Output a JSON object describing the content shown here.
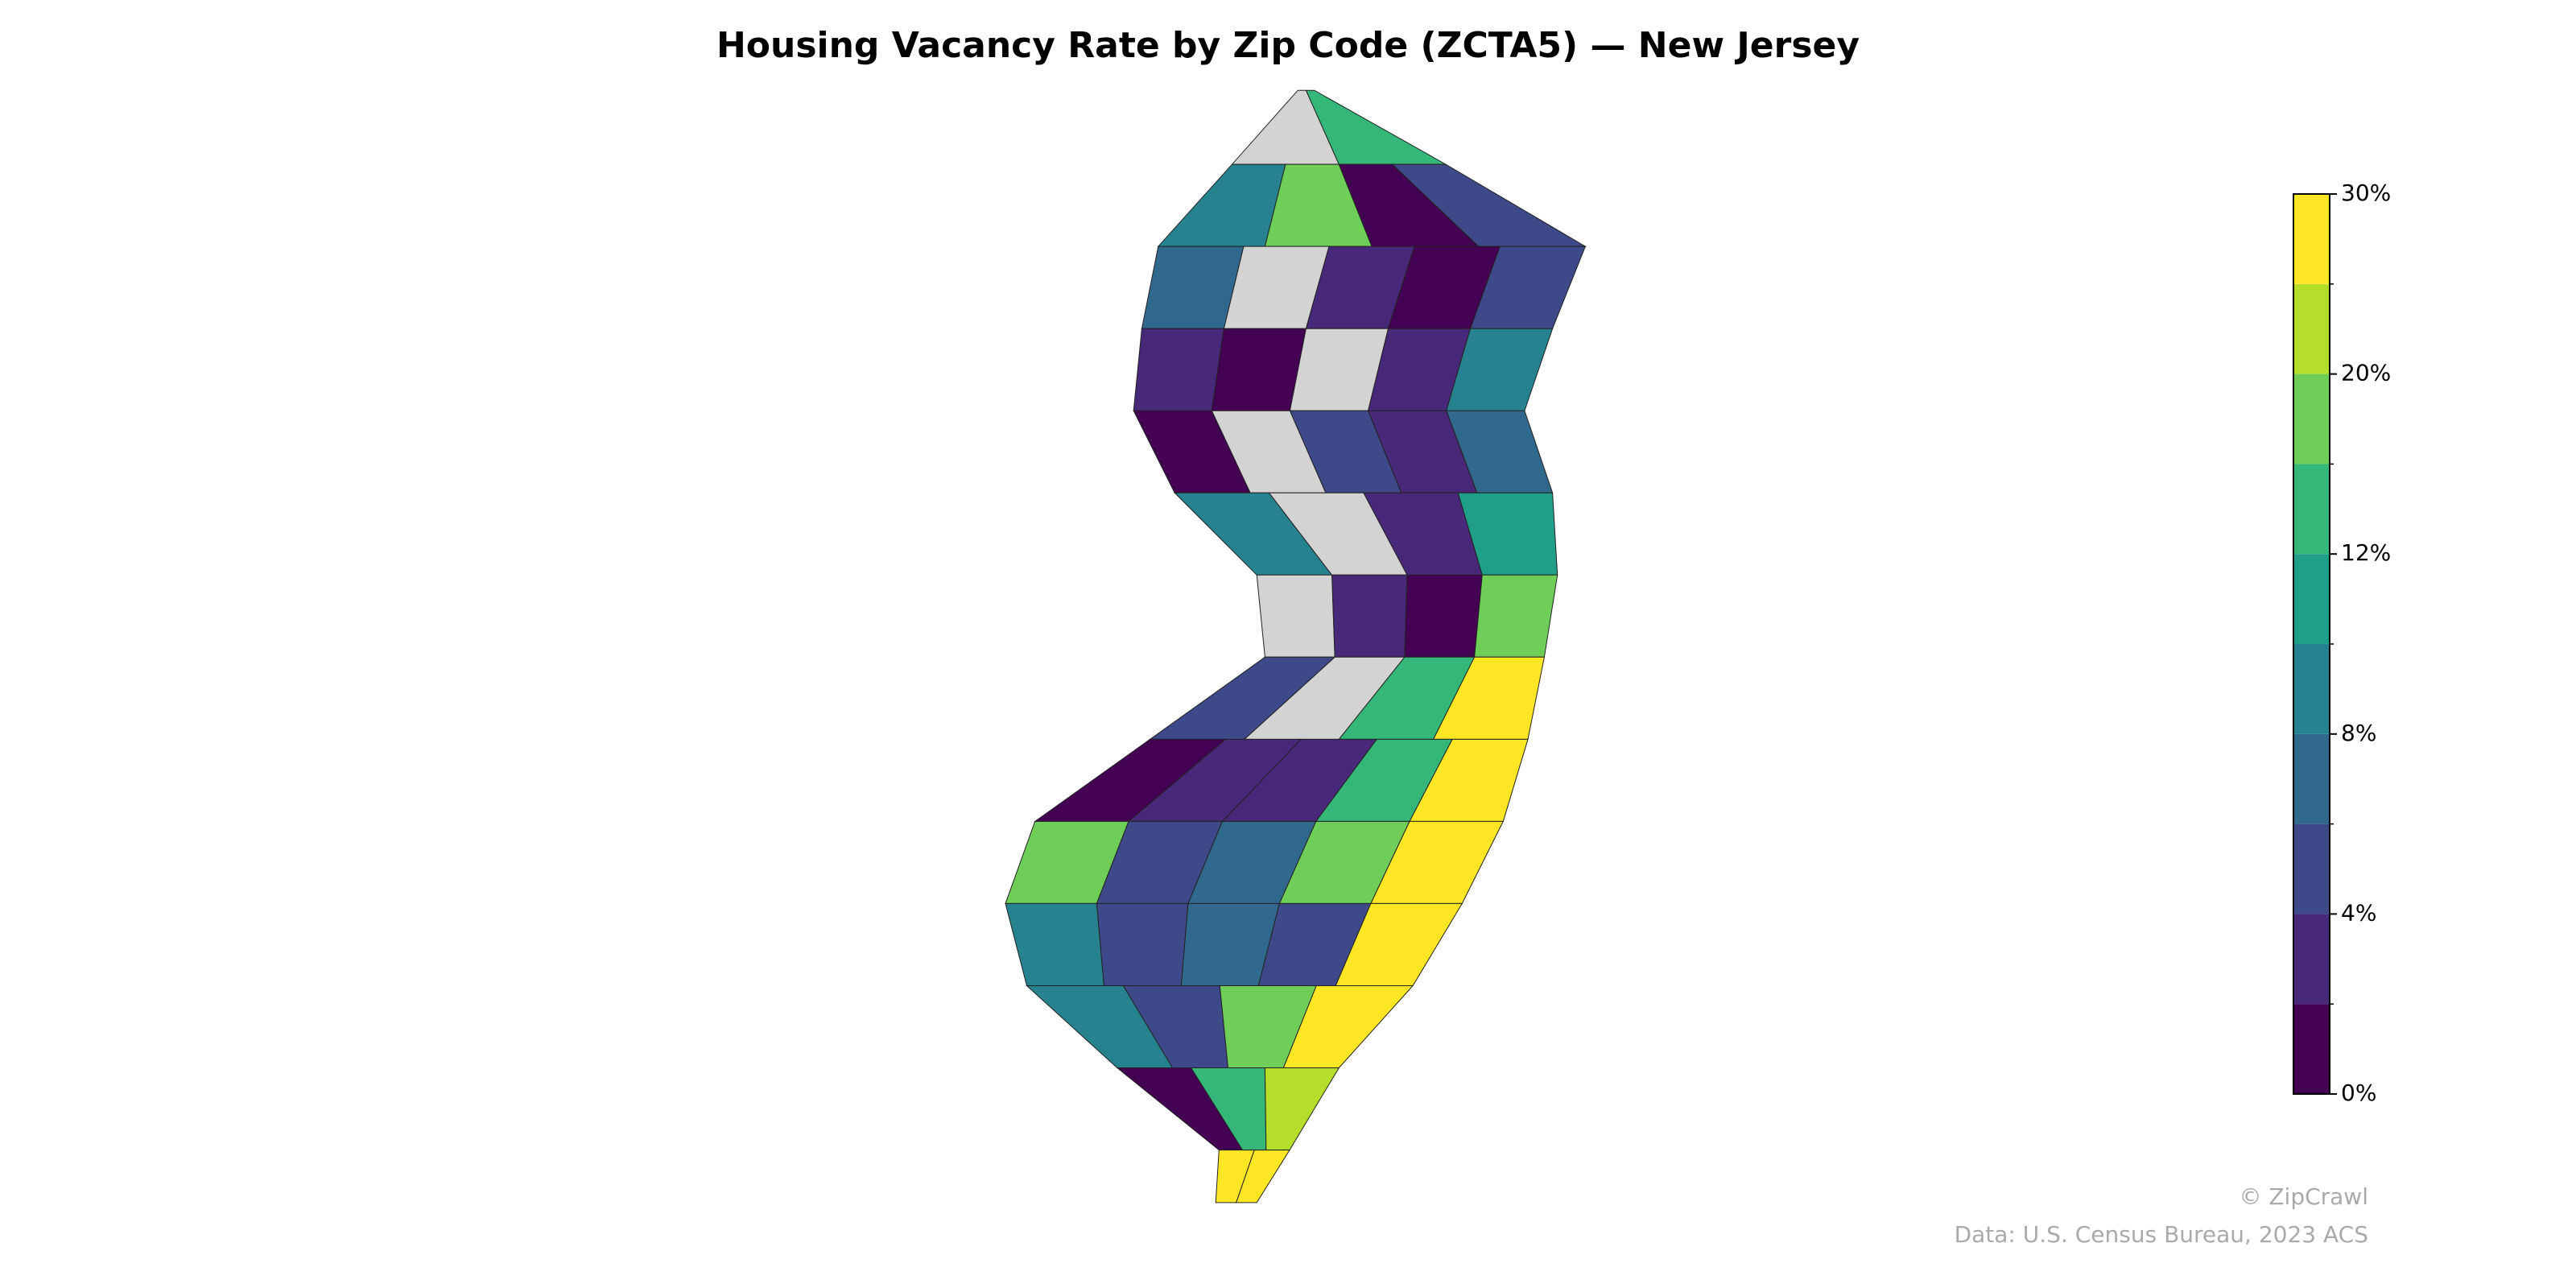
{
  "chart_data": {
    "type": "choropleth",
    "title": "Housing Vacancy Rate by Zip Code (ZCTA5) — New Jersey",
    "values": [
      [
        null,
        14
      ],
      [
        9,
        18,
        1,
        5
      ],
      [
        7,
        null,
        3,
        1,
        5
      ],
      [
        3,
        1,
        null,
        3,
        9
      ],
      [
        1,
        null,
        5,
        3,
        7
      ],
      [
        9,
        null,
        3,
        11
      ],
      [
        null,
        3,
        1,
        17
      ],
      [
        5,
        null,
        13,
        27
      ],
      [
        1,
        3,
        3,
        13,
        27
      ],
      [
        17,
        5,
        7,
        18,
        27
      ],
      [
        9,
        5,
        7,
        5,
        27
      ],
      [
        9,
        5,
        18,
        27
      ],
      [
        1,
        13,
        22
      ],
      [
        28,
        28
      ]
    ],
    "boundaries": [
      0,
      2,
      4,
      6,
      8,
      10,
      12,
      16,
      20,
      25,
      30
    ],
    "colors": [
      "#440154",
      "#482878",
      "#3e4989",
      "#31688e",
      "#26828e",
      "#1f9e89",
      "#35b779",
      "#6ece58",
      "#b5de2b",
      "#fde725"
    ],
    "missing_color": "#d3d3d3",
    "colorbar_ticks": [
      {
        "value": 0,
        "label": "0%"
      },
      {
        "value": 4,
        "label": "4%"
      },
      {
        "value": 8,
        "label": "8%"
      },
      {
        "value": 12,
        "label": "12%"
      },
      {
        "value": 20,
        "label": "20%"
      },
      {
        "value": 30,
        "label": "30%"
      }
    ],
    "credit": "© ZipCrawl",
    "source": "Data: U.S. Census Bureau, 2023 ACS"
  }
}
